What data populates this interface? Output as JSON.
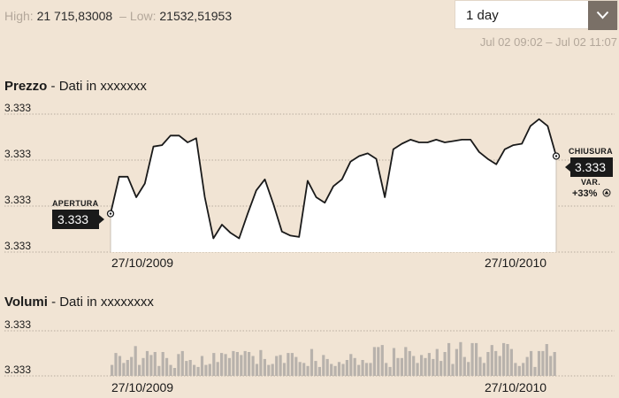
{
  "header": {
    "high_label": "High:",
    "high_value": "21 715,83008",
    "separator": "–",
    "low_label": "Low:",
    "low_value": "21532,51953",
    "period_select": "1 day",
    "time_range": "Jul 02 09:02 – Jul 02 11:07"
  },
  "price_section": {
    "title": "Prezzo",
    "subtitle": "- Dati in xxxxxxx",
    "open_label": "APERTURA",
    "open_value": "3.333",
    "close_label": "CHIUSURA",
    "close_value": "3.333",
    "var_label": "VAR.",
    "var_value": "+33%"
  },
  "volume_section": {
    "title": "Volumi",
    "subtitle": "- Dati in xxxxxxxx"
  },
  "colors": {
    "background": "#f1e4d4",
    "plot_fill": "#ffffff",
    "line": "#1a1a1a",
    "volume_bar": "#b8b2ac",
    "dropdown_arrow_bg": "#7a7067"
  },
  "chart_data": [
    {
      "type": "area",
      "name": "price",
      "y_ticks": [
        "3.333",
        "3.333",
        "3.333",
        "3.333"
      ],
      "x_ticks": [
        "27/10/2009",
        "27/10/2010"
      ],
      "grid": true,
      "values": [
        28,
        55,
        55,
        40,
        50,
        77,
        78,
        85,
        85,
        80,
        83,
        40,
        10,
        20,
        14,
        10,
        28,
        45,
        53,
        35,
        15,
        12,
        11,
        52,
        40,
        36,
        48,
        53,
        66,
        70,
        72,
        68,
        40,
        75,
        79,
        82,
        80,
        80,
        82,
        80,
        81,
        82,
        82,
        73,
        68,
        64,
        75,
        78,
        79,
        92,
        97,
        92,
        70
      ]
    },
    {
      "type": "bar",
      "name": "volume",
      "y_ticks": [
        "3.333",
        "3.333"
      ],
      "x_ticks": [
        "27/10/2009",
        "27/10/2010"
      ],
      "values": [
        11,
        23,
        20,
        13,
        16,
        19,
        30,
        11,
        18,
        25,
        21,
        24,
        10,
        24,
        18,
        11,
        8,
        22,
        25,
        15,
        16,
        11,
        9,
        20,
        11,
        12,
        23,
        14,
        23,
        22,
        18,
        25,
        24,
        21,
        25,
        24,
        20,
        12,
        26,
        17,
        11,
        12,
        20,
        21,
        13,
        23,
        23,
        19,
        14,
        13,
        10,
        27,
        15,
        9,
        21,
        17,
        12,
        10,
        14,
        12,
        16,
        22,
        18,
        11,
        16,
        13,
        13,
        29,
        29,
        31,
        13,
        9,
        28,
        18,
        18,
        29,
        25,
        20,
        13,
        21,
        18,
        23,
        17,
        27,
        15,
        24,
        33,
        12,
        27,
        34,
        19,
        14,
        33,
        33,
        19,
        13,
        24,
        31,
        25,
        20,
        33,
        32,
        27,
        13,
        10,
        13,
        19,
        25,
        9,
        25,
        25,
        32,
        20,
        24
      ]
    }
  ]
}
